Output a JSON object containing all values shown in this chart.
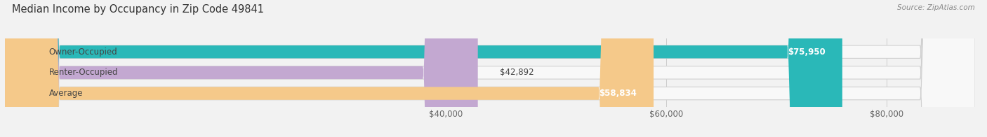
{
  "title": "Median Income by Occupancy in Zip Code 49841",
  "source": "Source: ZipAtlas.com",
  "categories": [
    "Owner-Occupied",
    "Renter-Occupied",
    "Average"
  ],
  "values": [
    75950,
    42892,
    58834
  ],
  "bar_colors": [
    "#2ab8b8",
    "#c3a8d1",
    "#f5c98a"
  ],
  "bar_labels": [
    "$75,950",
    "$42,892",
    "$58,834"
  ],
  "xmin": 0,
  "xmax": 88000,
  "xticks": [
    40000,
    60000,
    80000
  ],
  "xtick_labels": [
    "$40,000",
    "$60,000",
    "$80,000"
  ],
  "background_color": "#f2f2f2",
  "bar_bg_color": "#e4e4e4",
  "title_fontsize": 10.5,
  "bar_height": 0.62,
  "bar_label_fontsize": 8.5,
  "cat_label_fontsize": 8.5,
  "rounding_size": 5000
}
